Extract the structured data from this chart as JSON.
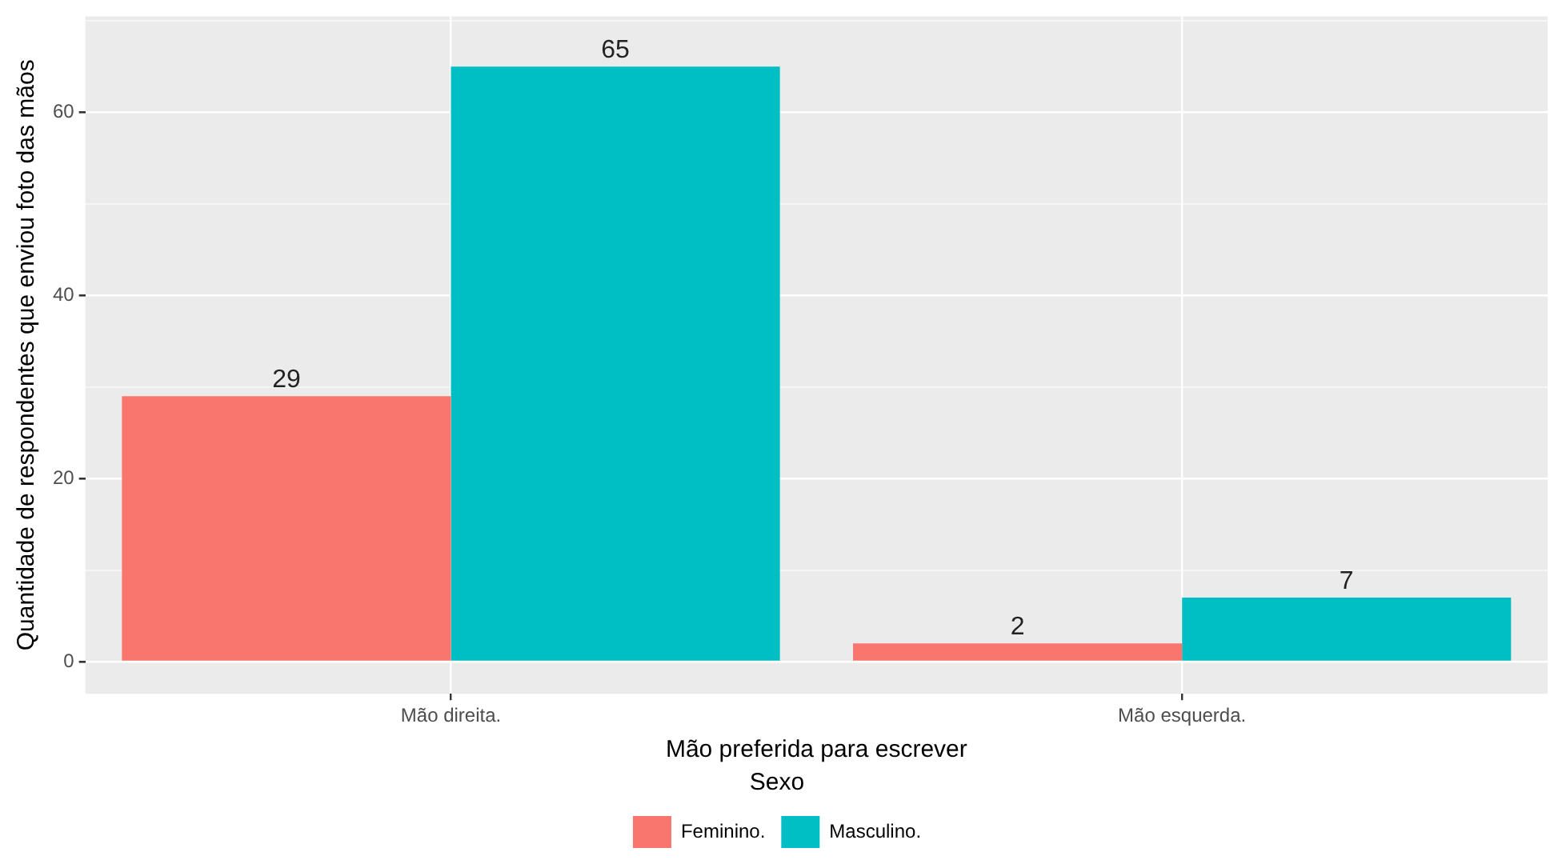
{
  "chart_data": {
    "type": "bar",
    "xlabel": "Mão preferida para escrever",
    "ylabel": "Quantidade de respondentes que enviou foto das mãos",
    "legend_title": "Sexo",
    "categories": [
      "Mão direita.",
      "Mão esquerda."
    ],
    "series": [
      {
        "name": "Feminino.",
        "color": "#f8766d",
        "values": [
          29,
          2
        ]
      },
      {
        "name": "Masculino.",
        "color": "#00bfc4",
        "values": [
          65,
          7
        ]
      }
    ],
    "ylim": [
      -3.5,
      70.5
    ],
    "yticks": [
      0,
      {
        "value": 10,
        "label": null
      },
      20,
      {
        "value": 30,
        "label": null
      },
      40,
      {
        "value": 50,
        "label": null
      },
      60,
      {
        "value": 70,
        "label": null
      }
    ],
    "grid": true,
    "legend": "bottom",
    "data_labels": true
  }
}
